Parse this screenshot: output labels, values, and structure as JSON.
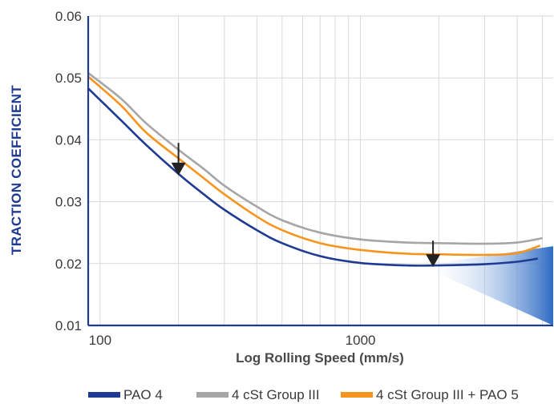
{
  "chart_data": {
    "type": "line",
    "title": "",
    "xlabel": "Log Rolling Speed (mm/s)",
    "ylabel": "TRACTION COEFFICIENT",
    "x_scale": "log",
    "xlim": [
      90,
      5500
    ],
    "ylim": [
      0.01,
      0.06
    ],
    "x_tick_labels": [
      "100",
      "1000"
    ],
    "y_tick_labels": [
      "0.01",
      "0.02",
      "0.03",
      "0.04",
      "0.05",
      "0.06"
    ],
    "y_ticks": [
      0.01,
      0.02,
      0.03,
      0.04,
      0.05,
      0.06
    ],
    "x_ticks": [
      100,
      1000
    ],
    "grid": true,
    "legend_position": "bottom",
    "series": [
      {
        "name": "PAO 4",
        "color": "#1f3a93",
        "x": [
          90,
          120,
          150,
          200,
          250,
          300,
          400,
          500,
          700,
          1000,
          1500,
          2000,
          3000,
          4000,
          4800
        ],
        "y": [
          0.0483,
          0.0432,
          0.0392,
          0.0345,
          0.0312,
          0.0287,
          0.0254,
          0.0233,
          0.0212,
          0.0201,
          0.0197,
          0.0197,
          0.0199,
          0.0203,
          0.0208
        ]
      },
      {
        "name": "4 cSt Group III",
        "color": "#a6a6a6",
        "x": [
          90,
          120,
          150,
          200,
          250,
          300,
          400,
          500,
          700,
          1000,
          1500,
          2000,
          3000,
          4000,
          5000
        ],
        "y": [
          0.0508,
          0.0467,
          0.0427,
          0.0384,
          0.0353,
          0.0326,
          0.0292,
          0.027,
          0.025,
          0.0239,
          0.0234,
          0.0233,
          0.0232,
          0.0234,
          0.0241
        ]
      },
      {
        "name": "4 cSt Group III + PAO 5",
        "color": "#f7941d",
        "x": [
          90,
          120,
          150,
          200,
          250,
          300,
          400,
          500,
          700,
          1000,
          1500,
          2000,
          3000,
          4000,
          4900
        ],
        "y": [
          0.0502,
          0.0456,
          0.0412,
          0.037,
          0.0338,
          0.0312,
          0.0276,
          0.0254,
          0.0233,
          0.0222,
          0.0216,
          0.0215,
          0.0214,
          0.0217,
          0.0229
        ]
      }
    ],
    "annotations": [
      {
        "type": "down-arrow",
        "x": 200,
        "y_from": 0.0395,
        "y_to": 0.0345
      },
      {
        "type": "down-arrow",
        "x": 1900,
        "y_from": 0.0237,
        "y_to": 0.0197
      },
      {
        "type": "shaded-wedge",
        "color": "#4a90d9",
        "x_from": 1700,
        "x_to": 5500
      }
    ]
  }
}
